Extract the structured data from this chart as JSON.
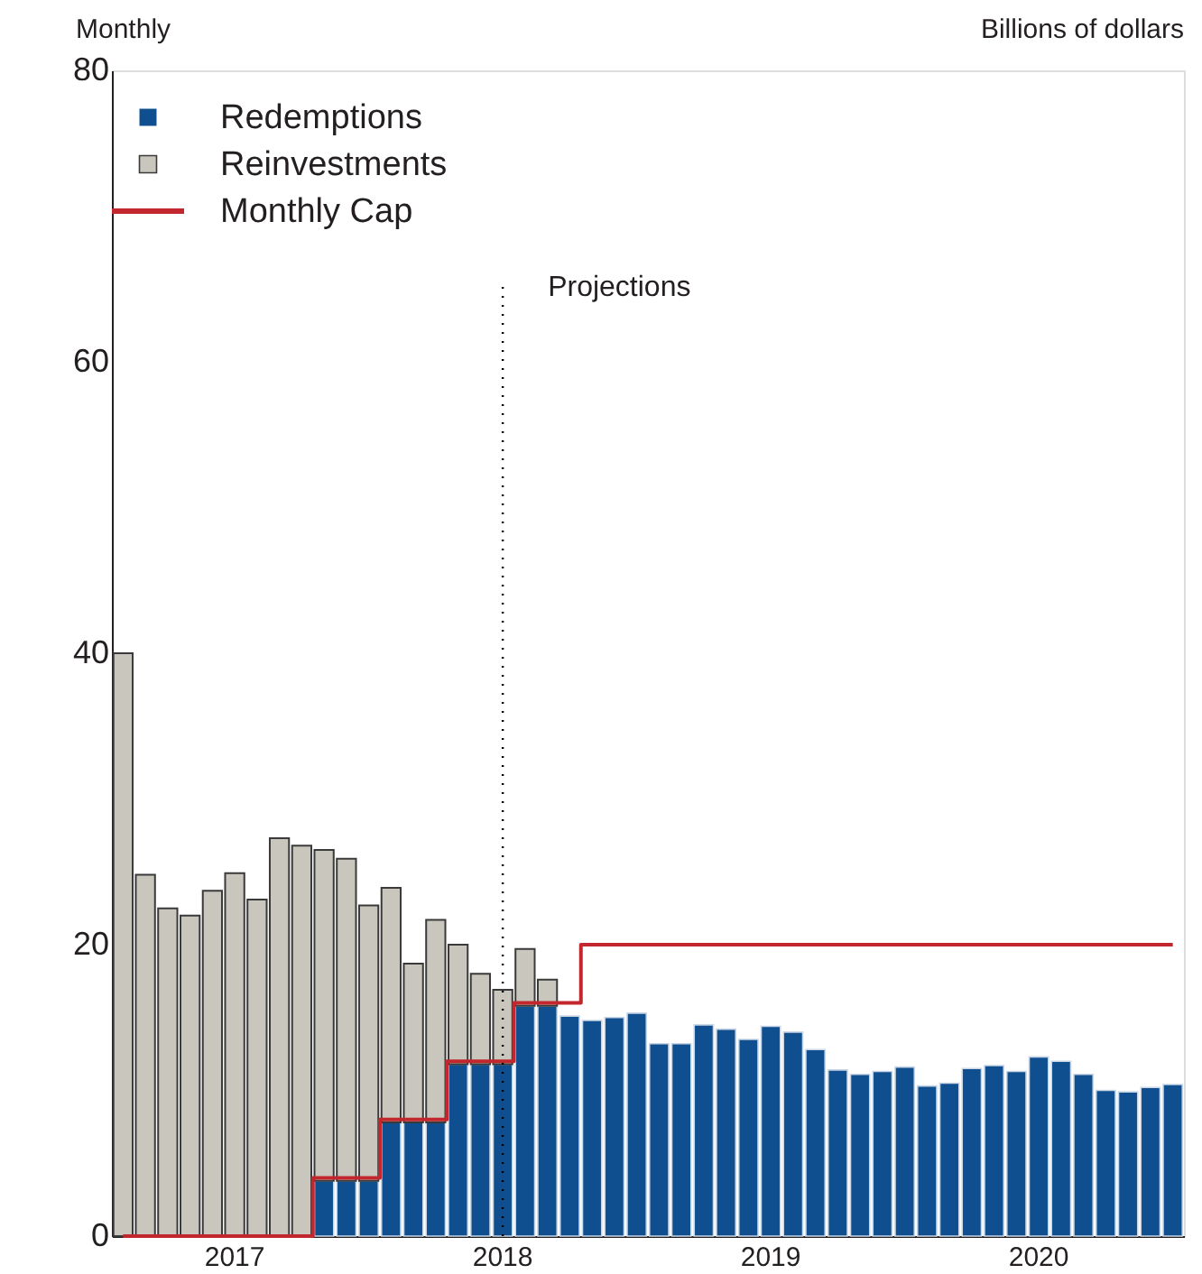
{
  "chart_data": {
    "type": "bar",
    "subtitle": "Monthly",
    "ylabel": "Billions of dollars",
    "stacked": true,
    "categories": [
      null,
      null,
      null,
      null,
      null,
      "2017",
      null,
      null,
      null,
      null,
      null,
      null,
      null,
      null,
      null,
      null,
      null,
      "2018",
      null,
      null,
      null,
      null,
      null,
      null,
      null,
      null,
      null,
      null,
      null,
      "2019",
      null,
      null,
      null,
      null,
      null,
      null,
      null,
      null,
      null,
      null,
      null,
      "2020",
      null,
      null,
      null,
      null,
      null,
      null
    ],
    "series": [
      {
        "name": "Redemptions",
        "color": "#0f4f8f",
        "values": [
          null,
          null,
          null,
          null,
          null,
          null,
          null,
          null,
          null,
          3.8,
          3.8,
          3.8,
          7.8,
          7.8,
          7.8,
          11.8,
          11.8,
          11.8,
          15.8,
          15.8,
          15.1,
          14.8,
          15.0,
          15.3,
          13.2,
          13.2,
          14.5,
          14.2,
          13.5,
          14.4,
          14.0,
          12.8,
          11.4,
          11.1,
          11.3,
          11.6,
          10.3,
          10.5,
          11.5,
          11.7,
          11.3,
          12.3,
          12.0,
          11.1,
          10.0,
          9.9,
          10.2,
          10.4
        ]
      },
      {
        "name": "Reinvestments",
        "color": "#c9c7bd",
        "values": [
          40.0,
          24.8,
          22.5,
          22.0,
          23.7,
          24.9,
          23.1,
          27.3,
          26.8,
          22.7,
          22.1,
          18.9,
          16.1,
          10.9,
          13.9,
          8.2,
          6.2,
          5.1,
          3.9,
          1.8,
          null,
          null,
          null,
          null,
          null,
          null,
          null,
          null,
          null,
          null,
          null,
          null,
          null,
          null,
          null,
          null,
          null,
          null,
          null,
          null,
          null,
          null,
          null,
          null,
          null,
          null,
          null,
          null
        ]
      },
      {
        "name": "Monthly Cap",
        "type": "step",
        "color": "#c1272d",
        "values": [
          0,
          0,
          0,
          0,
          0,
          0,
          0,
          0,
          0,
          4,
          4,
          4,
          8,
          8,
          8,
          12,
          12,
          12,
          16,
          16,
          16,
          20,
          20,
          20,
          20,
          20,
          20,
          20,
          20,
          20,
          20,
          20,
          20,
          20,
          20,
          20,
          20,
          20,
          20,
          20,
          20,
          20,
          20,
          20,
          20,
          20,
          20,
          20
        ]
      }
    ],
    "ylim": [
      0,
      80
    ],
    "yticks": [
      0,
      20,
      40,
      60,
      80
    ],
    "ref_lines": [
      {
        "axis": "x",
        "value": "2018",
        "label": "Projections",
        "line_style": "dotted",
        "color": "#000000"
      }
    ],
    "legend": "top left",
    "grid": false
  }
}
